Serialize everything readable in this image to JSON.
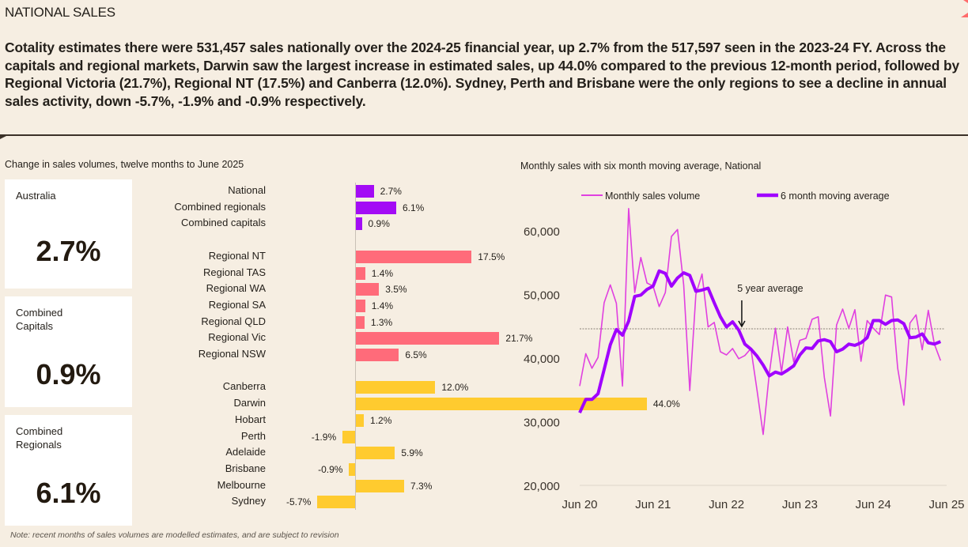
{
  "section_title": "NATIONAL SALES",
  "summary": "Cotality estimates there were 531,457 sales nationally over the 2024-25 financial year, up 2.7% from the 517,597 seen in the 2023-24 FY. Across the capitals and regional markets, Darwin saw the largest increase in estimated sales, up 44.0% compared to the previous 12-month period, followed by Regional Victoria (21.7%), Regional NT (17.5%) and Canberra (12.0%). Sydney, Perth and Brisbane were the only regions to see a decline in annual sales activity, down -5.7%, -1.9% and -0.9% respectively.",
  "left_panel": {
    "title": "Change in sales volumes, twelve months to June 2025",
    "kpis": [
      {
        "label": "Australia",
        "value": "2.7%"
      },
      {
        "label": "Combined\nCapitals",
        "value": "0.9%"
      },
      {
        "label": "Combined\nRegionals",
        "value": "6.1%"
      }
    ]
  },
  "note": "Note: recent months of sales volumes are modelled estimates, and are subject to revision",
  "colors": {
    "national_group": "#a30cf5",
    "regional_group": "#ff6b7a",
    "capital_group": "#ffcb2f",
    "monthly_line": "#e040e0",
    "moving_avg_line": "#a000ff",
    "background": "#f6eee2"
  },
  "chart_data": [
    {
      "type": "bar",
      "orientation": "horizontal",
      "title": "Change in sales volumes, twelve months to June 2025",
      "unit": "%",
      "groups": [
        {
          "name": "national",
          "color_key": "national_group",
          "categories": [
            "National",
            "Combined regionals",
            "Combined capitals"
          ],
          "values": [
            2.7,
            6.1,
            0.9
          ],
          "labels": [
            "2.7%",
            "6.1%",
            "0.9%"
          ]
        },
        {
          "name": "regional",
          "color_key": "regional_group",
          "categories": [
            "Regional NT",
            "Regional TAS",
            "Regional WA",
            "Regional SA",
            "Regional QLD",
            "Regional Vic",
            "Regional NSW"
          ],
          "values": [
            17.5,
            1.4,
            3.5,
            1.4,
            1.3,
            21.7,
            6.5
          ],
          "labels": [
            "17.5%",
            "1.4%",
            "3.5%",
            "1.4%",
            "1.3%",
            "21.7%",
            "6.5%"
          ]
        },
        {
          "name": "capitals",
          "color_key": "capital_group",
          "categories": [
            "Canberra",
            "Darwin",
            "Hobart",
            "Perth",
            "Adelaide",
            "Brisbane",
            "Melbourne",
            "Sydney"
          ],
          "values": [
            12.0,
            44.0,
            1.2,
            -1.9,
            5.9,
            -0.9,
            7.3,
            -5.7
          ],
          "labels": [
            "12.0%",
            "44.0%",
            "1.2%",
            "-1.9%",
            "5.9%",
            "-0.9%",
            "7.3%",
            "-5.7%"
          ]
        }
      ]
    },
    {
      "type": "line",
      "title": "Monthly sales with six month moving average, National",
      "xlabel": "",
      "ylabel": "",
      "x_ticks": [
        "Jun 20",
        "Jun 21",
        "Jun 22",
        "Jun 23",
        "Jun 24",
        "Jun 25"
      ],
      "y_ticks": [
        "20,000",
        "30,000",
        "40,000",
        "50,000",
        "60,000"
      ],
      "ylim": [
        20000,
        65000
      ],
      "x_start": "Jun 20",
      "x_end": "Jun 25",
      "legend": [
        "Monthly sales volume",
        "6 month moving average"
      ],
      "legend_position": "top",
      "annotation": {
        "text": "5 year average",
        "value": 44600
      },
      "series": [
        {
          "name": "Monthly sales volume",
          "color_key": "monthly_line",
          "values": [
            35600,
            40700,
            38400,
            40100,
            48700,
            51500,
            48600,
            35600,
            63500,
            50300,
            55800,
            51800,
            51300,
            48100,
            50300,
            59100,
            60200,
            51500,
            34900,
            50000,
            53200,
            44900,
            45600,
            41000,
            40500,
            41500,
            39900,
            40400,
            41500,
            34900,
            28000,
            37500,
            44700,
            37800,
            44900,
            39400,
            42800,
            43100,
            46100,
            46500,
            37000,
            30900,
            45200,
            47700,
            44700,
            47600,
            39500,
            45900,
            44700,
            43700,
            49900,
            49600,
            38400,
            32600,
            45500,
            46800,
            41300,
            47500,
            42200,
            39600
          ]
        },
        {
          "name": "6 month moving average",
          "color_key": "moving_avg_line",
          "values": [
            31400,
            33500,
            33500,
            34400,
            38200,
            42100,
            44500,
            43600,
            45800,
            49700,
            49900,
            50800,
            51300,
            53700,
            53300,
            51300,
            52600,
            53400,
            53000,
            50500,
            50700,
            51000,
            48700,
            46500,
            44900,
            45700,
            44400,
            42200,
            41400,
            40300,
            38900,
            37200,
            37800,
            37500,
            38100,
            38800,
            40500,
            41600,
            41500,
            42700,
            42900,
            42600,
            41000,
            41400,
            42200,
            42000,
            42400,
            43200,
            45900,
            45900,
            45300,
            45900,
            46000,
            45400,
            43200,
            43300,
            43800,
            42400,
            42200,
            42600
          ]
        }
      ]
    }
  ]
}
